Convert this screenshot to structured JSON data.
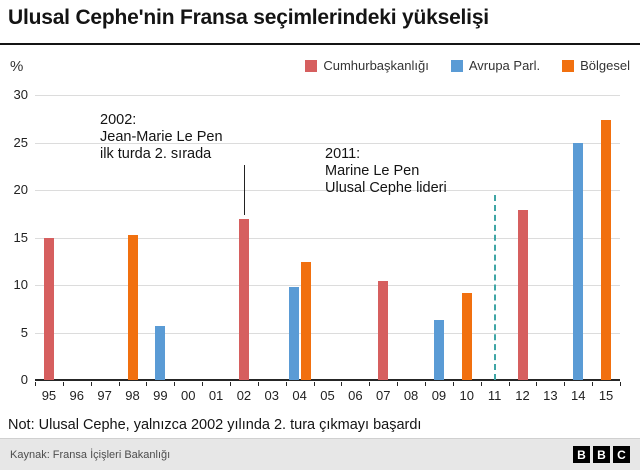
{
  "page": {
    "title": "Ulusal Cephe'nin Fransa seçimlerindeki yükselişi",
    "ylabel": "%",
    "note": "Not: Ulusal Cephe, yalnızca 2002 yılında 2. tura çıkmayı başardı",
    "source": "Kaynak: Fransa İçişleri Bakanlığı",
    "logo": [
      "B",
      "B",
      "C"
    ]
  },
  "chart_data": {
    "type": "bar",
    "title": "Ulusal Cephe'nin Fransa seçimlerindeki yükselişi",
    "xlabel": "",
    "ylabel": "%",
    "ylim": [
      0,
      30
    ],
    "yticks": [
      30,
      25,
      20,
      15,
      10,
      5,
      0
    ],
    "grid": true,
    "legend_position": "top-right",
    "categories": [
      "95",
      "96",
      "97",
      "98",
      "99",
      "00",
      "01",
      "02",
      "03",
      "04",
      "05",
      "06",
      "07",
      "08",
      "09",
      "10",
      "11",
      "12",
      "13",
      "14",
      "15"
    ],
    "series": [
      {
        "name": "Cumhurbaşkanlığı",
        "color": "#d65f5f",
        "points": {
          "95": 15.0,
          "02": 16.9,
          "07": 10.4,
          "12": 17.9
        }
      },
      {
        "name": "Avrupa Parl.",
        "color": "#5a9bd5",
        "points": {
          "99": 5.7,
          "04": 9.8,
          "09": 6.3,
          "14": 24.9
        }
      },
      {
        "name": "Bölgesel",
        "color": "#f1700f",
        "points": {
          "98": 15.3,
          "04": 12.4,
          "10": 9.2,
          "15": 27.4
        }
      }
    ],
    "annotations": [
      {
        "target": "02",
        "lines": [
          "2002:",
          "Jean-Marie Le Pen",
          "ilk turda 2. sırada"
        ]
      },
      {
        "target": "11",
        "lines": [
          "2011:",
          "Marine Le Pen",
          "Ulusal Cephe lideri"
        ]
      }
    ],
    "dashed_line": {
      "x": "11",
      "color": "#3fa5a5",
      "top_value": 19.5
    }
  }
}
